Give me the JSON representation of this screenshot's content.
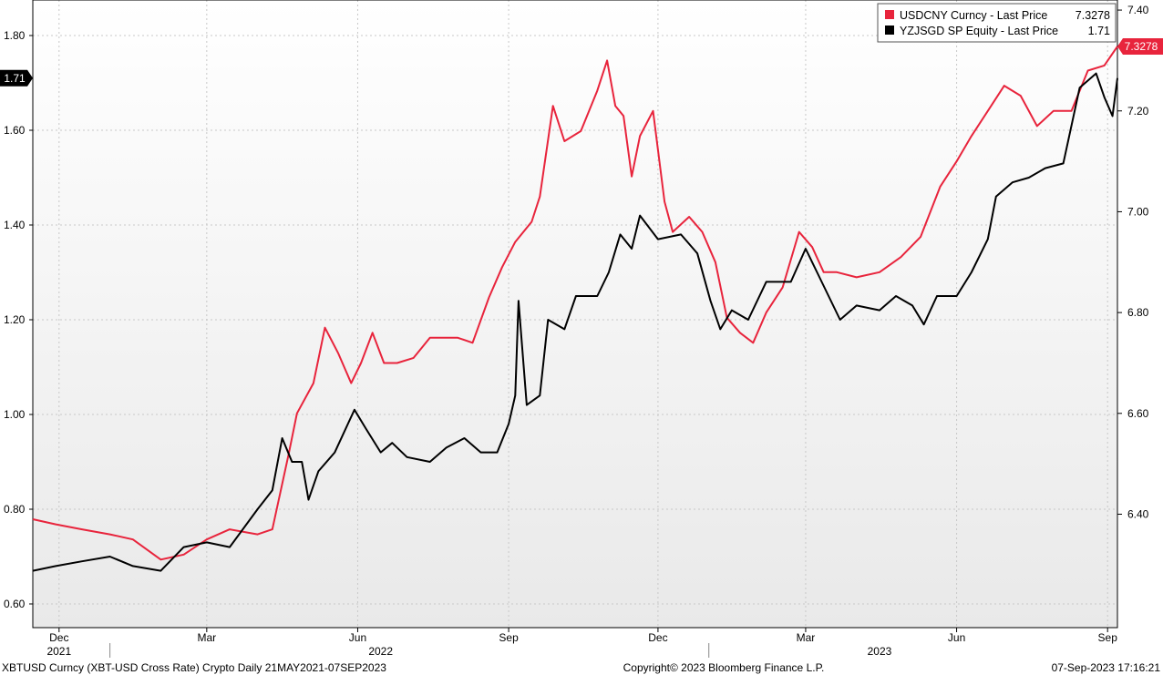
{
  "chart_data": {
    "type": "line",
    "x_range": [
      "2021-11-15",
      "2023-09-07"
    ],
    "y_left": {
      "ticks": [
        "0.60",
        "0.80",
        "1.00",
        "1.20",
        "1.40",
        "1.60",
        "1.80"
      ],
      "range": [
        0.55,
        1.875
      ]
    },
    "y_right": {
      "ticks": [
        "6.40",
        "6.60",
        "6.80",
        "7.00",
        "7.20",
        "7.40"
      ],
      "range": [
        6.175,
        7.42
      ]
    },
    "x_ticks": [
      {
        "label": "Dec",
        "date": "2021-12-01"
      },
      {
        "label": "Mar",
        "date": "2022-03-01"
      },
      {
        "label": "Jun",
        "date": "2022-06-01"
      },
      {
        "label": "Sep",
        "date": "2022-09-01"
      },
      {
        "label": "Dec",
        "date": "2022-12-01"
      },
      {
        "label": "Mar",
        "date": "2023-03-01"
      },
      {
        "label": "Jun",
        "date": "2023-06-01"
      },
      {
        "label": "Sep",
        "date": "2023-09-01"
      }
    ],
    "year_labels": [
      {
        "label": "2021",
        "date": "2021-12-01"
      },
      {
        "label": "2022",
        "date": "2022-06-15"
      },
      {
        "label": "2023",
        "date": "2023-04-15"
      }
    ],
    "grid": true,
    "legend_position": "top-right",
    "series": [
      {
        "name": "USDCNY Curncy - Last Price",
        "last_value": "7.3278",
        "axis": "right",
        "color": "#e8243c",
        "points": [
          [
            "2021-11-15",
            6.39
          ],
          [
            "2021-11-29",
            6.38
          ],
          [
            "2021-12-15",
            6.37
          ],
          [
            "2022-01-01",
            6.36
          ],
          [
            "2022-01-15",
            6.35
          ],
          [
            "2022-02-01",
            6.31
          ],
          [
            "2022-02-15",
            6.32
          ],
          [
            "2022-03-01",
            6.35
          ],
          [
            "2022-03-15",
            6.37
          ],
          [
            "2022-04-01",
            6.36
          ],
          [
            "2022-04-10",
            6.37
          ],
          [
            "2022-04-20",
            6.52
          ],
          [
            "2022-04-25",
            6.6
          ],
          [
            "2022-05-05",
            6.66
          ],
          [
            "2022-05-12",
            6.77
          ],
          [
            "2022-05-20",
            6.72
          ],
          [
            "2022-05-28",
            6.66
          ],
          [
            "2022-06-03",
            6.7
          ],
          [
            "2022-06-10",
            6.76
          ],
          [
            "2022-06-17",
            6.7
          ],
          [
            "2022-06-25",
            6.7
          ],
          [
            "2022-07-05",
            6.71
          ],
          [
            "2022-07-15",
            6.75
          ],
          [
            "2022-08-01",
            6.75
          ],
          [
            "2022-08-10",
            6.74
          ],
          [
            "2022-08-20",
            6.83
          ],
          [
            "2022-08-28",
            6.89
          ],
          [
            "2022-09-05",
            6.94
          ],
          [
            "2022-09-15",
            6.98
          ],
          [
            "2022-09-20",
            7.03
          ],
          [
            "2022-09-28",
            7.21
          ],
          [
            "2022-10-05",
            7.14
          ],
          [
            "2022-10-15",
            7.16
          ],
          [
            "2022-10-25",
            7.24
          ],
          [
            "2022-10-31",
            7.3
          ],
          [
            "2022-11-05",
            7.21
          ],
          [
            "2022-11-10",
            7.19
          ],
          [
            "2022-11-15",
            7.07
          ],
          [
            "2022-11-20",
            7.15
          ],
          [
            "2022-11-28",
            7.2
          ],
          [
            "2022-12-05",
            7.02
          ],
          [
            "2022-12-10",
            6.96
          ],
          [
            "2022-12-20",
            6.99
          ],
          [
            "2022-12-28",
            6.96
          ],
          [
            "2023-01-05",
            6.9
          ],
          [
            "2023-01-12",
            6.79
          ],
          [
            "2023-01-20",
            6.76
          ],
          [
            "2023-01-28",
            6.74
          ],
          [
            "2023-02-05",
            6.8
          ],
          [
            "2023-02-15",
            6.85
          ],
          [
            "2023-02-25",
            6.96
          ],
          [
            "2023-03-05",
            6.93
          ],
          [
            "2023-03-12",
            6.88
          ],
          [
            "2023-03-20",
            6.88
          ],
          [
            "2023-04-01",
            6.87
          ],
          [
            "2023-04-15",
            6.88
          ],
          [
            "2023-04-28",
            6.91
          ],
          [
            "2023-05-10",
            6.95
          ],
          [
            "2023-05-22",
            7.05
          ],
          [
            "2023-06-01",
            7.1
          ],
          [
            "2023-06-10",
            7.15
          ],
          [
            "2023-06-20",
            7.2
          ],
          [
            "2023-06-30",
            7.25
          ],
          [
            "2023-07-10",
            7.23
          ],
          [
            "2023-07-20",
            7.17
          ],
          [
            "2023-07-30",
            7.2
          ],
          [
            "2023-08-10",
            7.2
          ],
          [
            "2023-08-20",
            7.28
          ],
          [
            "2023-08-30",
            7.29
          ],
          [
            "2023-09-07",
            7.3278
          ]
        ]
      },
      {
        "name": "YZJSGD SP Equity - Last Price",
        "last_value": "1.71",
        "axis": "left",
        "color": "#000000",
        "points": [
          [
            "2021-11-15",
            0.67
          ],
          [
            "2021-11-29",
            0.68
          ],
          [
            "2021-12-15",
            0.69
          ],
          [
            "2022-01-01",
            0.7
          ],
          [
            "2022-01-15",
            0.68
          ],
          [
            "2022-02-01",
            0.67
          ],
          [
            "2022-02-15",
            0.72
          ],
          [
            "2022-03-01",
            0.73
          ],
          [
            "2022-03-15",
            0.72
          ],
          [
            "2022-04-01",
            0.8
          ],
          [
            "2022-04-10",
            0.84
          ],
          [
            "2022-04-16",
            0.95
          ],
          [
            "2022-04-22",
            0.9
          ],
          [
            "2022-04-28",
            0.9
          ],
          [
            "2022-05-02",
            0.82
          ],
          [
            "2022-05-08",
            0.88
          ],
          [
            "2022-05-18",
            0.92
          ],
          [
            "2022-05-30",
            1.01
          ],
          [
            "2022-06-06",
            0.97
          ],
          [
            "2022-06-15",
            0.92
          ],
          [
            "2022-06-22",
            0.94
          ],
          [
            "2022-07-01",
            0.91
          ],
          [
            "2022-07-15",
            0.9
          ],
          [
            "2022-07-25",
            0.93
          ],
          [
            "2022-08-05",
            0.95
          ],
          [
            "2022-08-15",
            0.92
          ],
          [
            "2022-08-25",
            0.92
          ],
          [
            "2022-09-01",
            0.98
          ],
          [
            "2022-09-05",
            1.04
          ],
          [
            "2022-09-07",
            1.24
          ],
          [
            "2022-09-12",
            1.02
          ],
          [
            "2022-09-20",
            1.04
          ],
          [
            "2022-09-25",
            1.2
          ],
          [
            "2022-10-05",
            1.18
          ],
          [
            "2022-10-12",
            1.25
          ],
          [
            "2022-10-25",
            1.25
          ],
          [
            "2022-11-01",
            1.3
          ],
          [
            "2022-11-08",
            1.38
          ],
          [
            "2022-11-15",
            1.35
          ],
          [
            "2022-11-20",
            1.42
          ],
          [
            "2022-12-01",
            1.37
          ],
          [
            "2022-12-15",
            1.38
          ],
          [
            "2022-12-25",
            1.34
          ],
          [
            "2023-01-02",
            1.24
          ],
          [
            "2023-01-08",
            1.18
          ],
          [
            "2023-01-15",
            1.22
          ],
          [
            "2023-01-25",
            1.2
          ],
          [
            "2023-02-05",
            1.28
          ],
          [
            "2023-02-20",
            1.28
          ],
          [
            "2023-03-01",
            1.35
          ],
          [
            "2023-03-08",
            1.3
          ],
          [
            "2023-03-15",
            1.25
          ],
          [
            "2023-03-22",
            1.2
          ],
          [
            "2023-04-01",
            1.23
          ],
          [
            "2023-04-15",
            1.22
          ],
          [
            "2023-04-25",
            1.25
          ],
          [
            "2023-05-05",
            1.23
          ],
          [
            "2023-05-12",
            1.19
          ],
          [
            "2023-05-20",
            1.25
          ],
          [
            "2023-06-01",
            1.25
          ],
          [
            "2023-06-10",
            1.3
          ],
          [
            "2023-06-20",
            1.37
          ],
          [
            "2023-06-25",
            1.46
          ],
          [
            "2023-07-05",
            1.49
          ],
          [
            "2023-07-15",
            1.5
          ],
          [
            "2023-07-25",
            1.52
          ],
          [
            "2023-08-05",
            1.53
          ],
          [
            "2023-08-15",
            1.69
          ],
          [
            "2023-08-25",
            1.72
          ],
          [
            "2023-08-30",
            1.67
          ],
          [
            "2023-09-04",
            1.63
          ],
          [
            "2023-09-07",
            1.71
          ]
        ]
      }
    ]
  },
  "footer": {
    "left": "XBTUSD Curncy (XBT-USD Cross Rate) Crypto  Daily 21MAY2021-07SEP2023",
    "center": "Copyright© 2023 Bloomberg Finance L.P.",
    "right": "07-Sep-2023 17:16:21"
  }
}
